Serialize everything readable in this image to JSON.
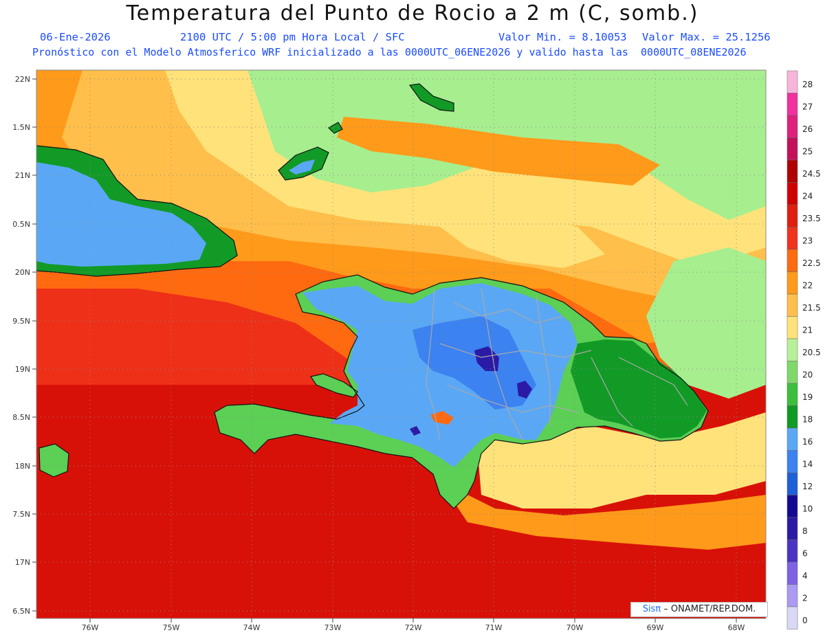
{
  "title": "Temperatura del Punto de Rocio a 2 m (C, somb.)",
  "header": {
    "date": "06-Ene-2026",
    "time": "2100 UTC / 5:00 pm Hora Local / SFC",
    "min_label": "Valor Min. = 8.10053",
    "max_label": "Valor Max. = 25.1256",
    "model_line": "Pronóstico con el Modelo Atmosferico WRF inicializado a las 0000UTC_06ENE2026 y valido hasta las  0000UTC_08ENE2026"
  },
  "credit": {
    "sis": "Sisπ",
    "org": " – ONAMET/REP.DOM."
  },
  "lat_labels": [
    "22N",
    "1.5N",
    "21N",
    "0.5N",
    "20N",
    "9.5N",
    "19N",
    "8.5N",
    "18N",
    "7.5N",
    "17N",
    "6.5N"
  ],
  "lon_labels": [
    "76W",
    "75W",
    "74W",
    "73W",
    "72W",
    "71W",
    "70W",
    "69W",
    "68W"
  ],
  "colorbar": {
    "labels": [
      "28",
      "27",
      "26",
      "25",
      "24.5",
      "24",
      "23.5",
      "23",
      "22.5",
      "22",
      "21.5",
      "21",
      "20.5",
      "20",
      "19",
      "18",
      "16",
      "14",
      "12",
      "10",
      "8",
      "6",
      "4",
      "2",
      "0"
    ],
    "colors": [
      "#f7b6d9",
      "#f2309e",
      "#e0207d",
      "#c4105a",
      "#b00000",
      "#d10000",
      "#e01f10",
      "#f0321e",
      "#ff6a10",
      "#ff9a1a",
      "#ffbf4a",
      "#ffe27a",
      "#b8f09a",
      "#7ed96a",
      "#3cbf3c",
      "#0f9a24",
      "#5aa8f5",
      "#3c82f0",
      "#1f5fd8",
      "#130a94",
      "#2a1aa6",
      "#4a33c4",
      "#7d63e4",
      "#ab99f2",
      "#d9d9f7"
    ]
  },
  "palette": {
    "sea_red_dark": "#d81108",
    "sea_red": "#ee3018",
    "orange_red": "#ff6a10",
    "orange": "#ff9a1a",
    "light_orange": "#ffbf4a",
    "yellow": "#ffe27a",
    "light_green": "#a7ee8f",
    "green": "#5ccf55",
    "dark_green": "#129a26",
    "light_blue": "#5aa8f5",
    "blue": "#3c82f0",
    "navy": "#2a1aa6"
  }
}
